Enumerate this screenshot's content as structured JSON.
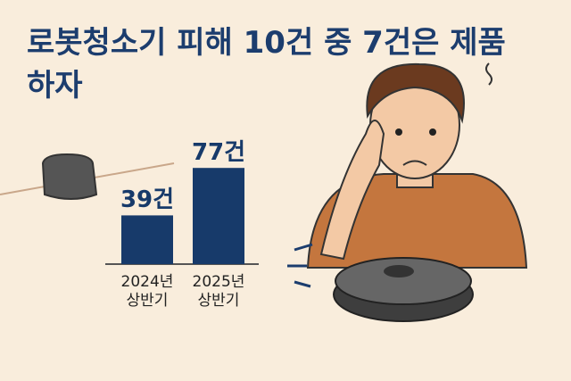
{
  "chart_data": {
    "type": "bar",
    "title": "로봇청소기 피해 10건 중 7건은 제품 하자",
    "categories": [
      "2024년 상반기",
      "2025년 상반기"
    ],
    "values": [
      39,
      77
    ],
    "value_labels": [
      "39건",
      "77건"
    ],
    "color": "#173a6a"
  }
}
